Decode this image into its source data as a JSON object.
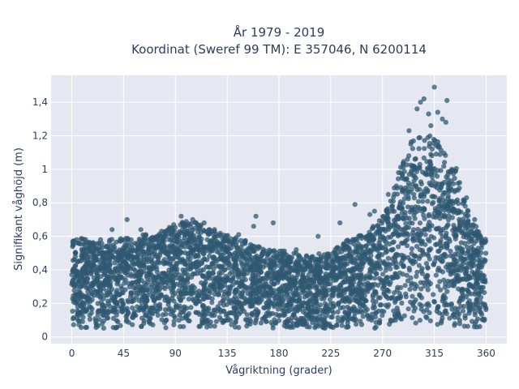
{
  "chart_data": {
    "type": "scatter",
    "title": "År 1979 - 2019",
    "subtitle": "Koordinat (Sweref 99 TM): E 357046, N 6200114",
    "xlabel": "Vågriktning (grader)",
    "ylabel": "Signifikant våghöjd (m)",
    "xlim": [
      -18,
      378
    ],
    "ylim": [
      -0.04,
      1.56
    ],
    "xticks": [
      0,
      45,
      90,
      135,
      180,
      225,
      270,
      315,
      360
    ],
    "xtick_labels": [
      "0",
      "45",
      "90",
      "135",
      "180",
      "225",
      "270",
      "315",
      "360"
    ],
    "yticks": [
      0,
      0.2,
      0.4,
      0.6,
      0.8,
      1,
      1.2,
      1.4
    ],
    "ytick_labels": [
      "0",
      "0,2",
      "0,4",
      "0,6",
      "0,8",
      "1",
      "1,2",
      "1,4"
    ],
    "grid": true,
    "marker_color": "#2f5872",
    "plot_bgcolor": "#e5e8f0",
    "upper_envelope": {
      "x": [
        0,
        10,
        20,
        30,
        45,
        60,
        75,
        90,
        100,
        110,
        120,
        135,
        150,
        165,
        180,
        195,
        210,
        225,
        240,
        255,
        265,
        275,
        285,
        295,
        305,
        315,
        325,
        335,
        345,
        355,
        360
      ],
      "y": [
        0.52,
        0.53,
        0.5,
        0.52,
        0.54,
        0.55,
        0.55,
        0.62,
        0.63,
        0.62,
        0.58,
        0.55,
        0.52,
        0.47,
        0.46,
        0.44,
        0.43,
        0.45,
        0.52,
        0.56,
        0.62,
        0.72,
        0.88,
        1.02,
        1.05,
        1.05,
        0.95,
        0.85,
        0.7,
        0.55,
        0.52
      ]
    },
    "outliers": [
      {
        "x": 303,
        "y": 1.4
      },
      {
        "x": 306,
        "y": 1.42
      },
      {
        "x": 300,
        "y": 1.36
      },
      {
        "x": 315,
        "y": 1.49
      },
      {
        "x": 326,
        "y": 1.41
      },
      {
        "x": 310,
        "y": 1.33
      },
      {
        "x": 318,
        "y": 1.34
      },
      {
        "x": 322,
        "y": 1.3
      },
      {
        "x": 325,
        "y": 1.28
      },
      {
        "x": 312,
        "y": 1.26
      },
      {
        "x": 293,
        "y": 1.23
      },
      {
        "x": 288,
        "y": 1.01
      },
      {
        "x": 282,
        "y": 0.9
      },
      {
        "x": 275,
        "y": 0.85
      },
      {
        "x": 263,
        "y": 0.75
      },
      {
        "x": 259,
        "y": 0.73
      },
      {
        "x": 246,
        "y": 0.79
      },
      {
        "x": 233,
        "y": 0.68
      },
      {
        "x": 214,
        "y": 0.6
      },
      {
        "x": 195,
        "y": 0.52
      },
      {
        "x": 175,
        "y": 0.68
      },
      {
        "x": 160,
        "y": 0.72
      },
      {
        "x": 158,
        "y": 0.66
      },
      {
        "x": 145,
        "y": 0.61
      },
      {
        "x": 124,
        "y": 0.64
      },
      {
        "x": 115,
        "y": 0.68
      },
      {
        "x": 105,
        "y": 0.7
      },
      {
        "x": 95,
        "y": 0.72
      },
      {
        "x": 88,
        "y": 0.64
      },
      {
        "x": 78,
        "y": 0.63
      },
      {
        "x": 60,
        "y": 0.64
      },
      {
        "x": 48,
        "y": 0.7
      },
      {
        "x": 35,
        "y": 0.64
      },
      {
        "x": 25,
        "y": 0.58
      },
      {
        "x": 12,
        "y": 0.58
      },
      {
        "x": 6,
        "y": 0.56
      },
      {
        "x": 337,
        "y": 0.92
      },
      {
        "x": 343,
        "y": 0.83
      },
      {
        "x": 350,
        "y": 0.7
      },
      {
        "x": 355,
        "y": 0.6
      }
    ]
  }
}
